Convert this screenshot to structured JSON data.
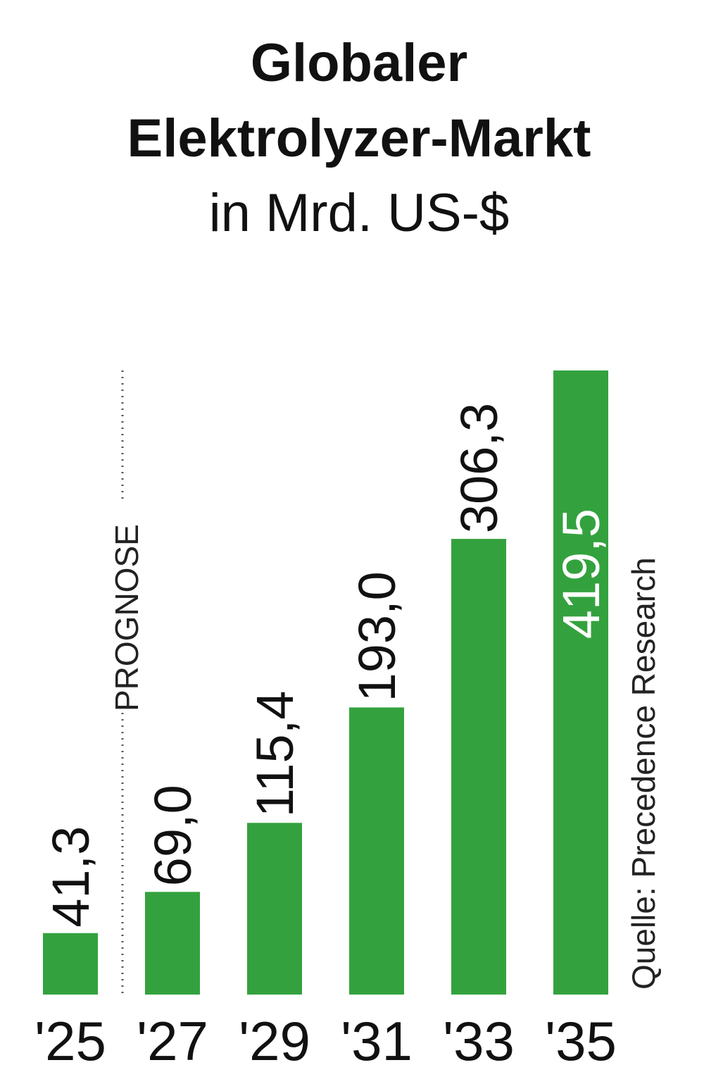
{
  "chart_data": {
    "type": "bar",
    "title_lines": [
      "Globaler",
      "Elektrolyzer-Markt"
    ],
    "subtitle": "in Mrd. US-$",
    "categories": [
      "'25",
      "'27",
      "'29",
      "'31",
      "'33",
      "'35"
    ],
    "values": [
      41.3,
      69.0,
      115.4,
      193.0,
      306.3,
      419.5
    ],
    "value_labels": [
      "41,3",
      "69,0",
      "115,4",
      "193,0",
      "306,3",
      "419,5"
    ],
    "ylim": [
      0,
      419.5
    ],
    "grid": false,
    "legend": "none",
    "forecast_label": "PROGNOSE",
    "source": "Quelle: Precedence Research",
    "bar_color": "#33a23e"
  }
}
